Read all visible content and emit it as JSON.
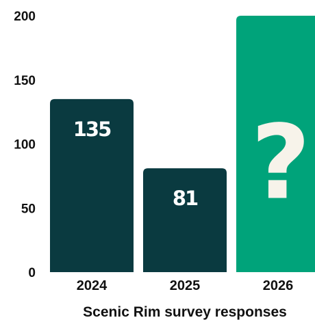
{
  "chart_data": {
    "type": "bar",
    "categories": [
      "2024",
      "2025",
      "2026"
    ],
    "values": [
      135,
      81,
      200
    ],
    "data_labels": [
      "135",
      "81",
      "?"
    ],
    "xlabel": "Scenic Rim survey responses",
    "ylabel": "",
    "ylim": [
      0,
      200
    ],
    "yticks": [
      "0",
      "50",
      "100",
      "150",
      "200"
    ],
    "grid": false,
    "colors": {
      "bar": "#0a3a40",
      "highlight_bar": "#00a37a",
      "label": "#ffffff",
      "question_mark": "#f7f3ea"
    }
  }
}
